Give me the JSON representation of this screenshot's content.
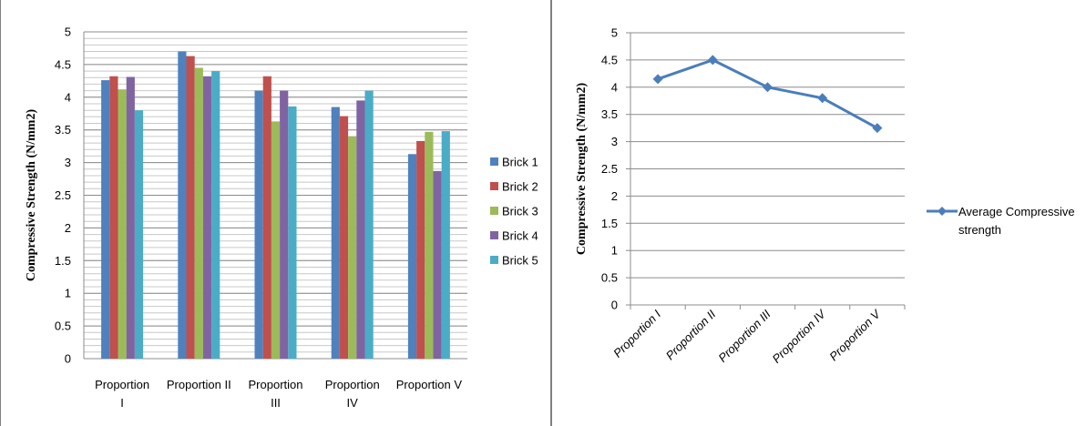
{
  "chart_data": [
    {
      "type": "bar",
      "ylabel": "Compressive Strength (N/mm2)",
      "xlabel": "",
      "ylim": [
        0,
        5
      ],
      "ytick_step": 0.5,
      "ytick_labels": [
        "0",
        "0.5",
        "1",
        "1.5",
        "2",
        "2.5",
        "3",
        "3.5",
        "4",
        "4.5",
        "5"
      ],
      "minor_grid_step": 0.1,
      "grid": true,
      "legend_position": "right",
      "categories": [
        [
          "Proportion",
          "I"
        ],
        [
          "Proportion II"
        ],
        [
          "Proportion",
          "III"
        ],
        [
          "Proportion",
          "IV"
        ],
        [
          "Proportion V"
        ]
      ],
      "series": [
        {
          "name": "Brick 1",
          "color": "#4F81BD",
          "values": [
            4.26,
            4.7,
            4.1,
            3.85,
            3.13
          ]
        },
        {
          "name": "Brick 2",
          "color": "#C0504D",
          "values": [
            4.32,
            4.63,
            4.32,
            3.71,
            3.33
          ]
        },
        {
          "name": "Brick 3",
          "color": "#9BBB59",
          "values": [
            4.12,
            4.45,
            3.63,
            3.4,
            3.47
          ]
        },
        {
          "name": "Brick 4",
          "color": "#8064A2",
          "values": [
            4.31,
            4.32,
            4.1,
            3.95,
            2.87
          ]
        },
        {
          "name": "Brick 5",
          "color": "#4BACC6",
          "values": [
            3.8,
            4.4,
            3.86,
            4.1,
            3.48
          ]
        }
      ]
    },
    {
      "type": "line",
      "ylabel": "Compressive Strength (N/mm2)",
      "xlabel": "",
      "ylim": [
        0,
        5
      ],
      "ytick_step": 0.5,
      "ytick_labels": [
        "0",
        "0.5",
        "1",
        "1.5",
        "2",
        "2.5",
        "3",
        "3.5",
        "4",
        "4.5",
        "5"
      ],
      "grid": true,
      "legend_position": "right",
      "categories": [
        "Proportion    I",
        "Proportion II",
        "Proportion III",
        "Proportion IV",
        "Proportion V"
      ],
      "series": [
        {
          "name": "Average Compressive strength",
          "name_lines": [
            "Average Compressive",
            "strength"
          ],
          "color": "#4A7EBB",
          "values": [
            4.15,
            4.5,
            4.0,
            3.8,
            3.25
          ]
        }
      ]
    }
  ]
}
